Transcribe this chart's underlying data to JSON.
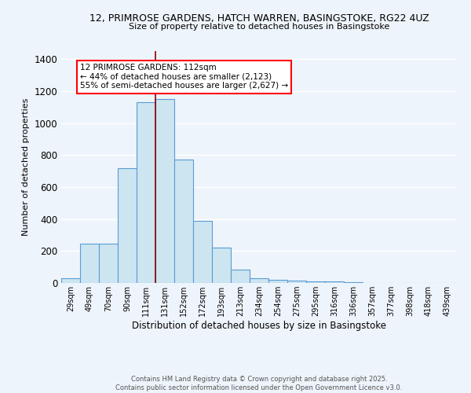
{
  "title1": "12, PRIMROSE GARDENS, HATCH WARREN, BASINGSTOKE, RG22 4UZ",
  "title2": "Size of property relative to detached houses in Basingstoke",
  "xlabel": "Distribution of detached houses by size in Basingstoke",
  "ylabel": "Number of detached properties",
  "bin_labels": [
    "29sqm",
    "49sqm",
    "70sqm",
    "90sqm",
    "111sqm",
    "131sqm",
    "152sqm",
    "172sqm",
    "193sqm",
    "213sqm",
    "234sqm",
    "254sqm",
    "275sqm",
    "295sqm",
    "316sqm",
    "336sqm",
    "357sqm",
    "377sqm",
    "398sqm",
    "418sqm",
    "439sqm"
  ],
  "bar_heights": [
    30,
    245,
    245,
    720,
    1130,
    1150,
    770,
    390,
    220,
    85,
    30,
    20,
    15,
    10,
    8,
    5,
    2,
    1,
    0,
    0,
    0
  ],
  "bar_color": "#cce5f0",
  "bar_edge_color": "#5b9bd5",
  "vline_x": 4.5,
  "vline_color": "#8b0000",
  "annotation_title": "12 PRIMROSE GARDENS: 112sqm",
  "annotation_line1": "← 44% of detached houses are smaller (2,123)",
  "annotation_line2": "55% of semi-detached houses are larger (2,627) →",
  "annotation_box_color": "white",
  "annotation_box_edge": "red",
  "ylim": [
    0,
    1450
  ],
  "yticks": [
    0,
    200,
    400,
    600,
    800,
    1000,
    1200,
    1400
  ],
  "footer1": "Contains HM Land Registry data © Crown copyright and database right 2025.",
  "footer2": "Contains public sector information licensed under the Open Government Licence v3.0.",
  "bg_color": "#eef4fb",
  "grid_color": "#ffffff"
}
